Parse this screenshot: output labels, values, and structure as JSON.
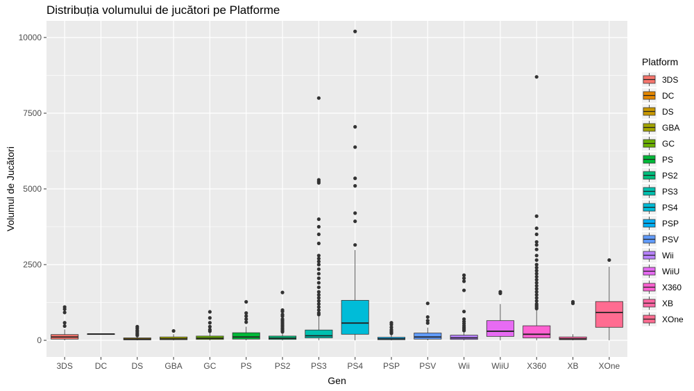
{
  "chart_data": {
    "type": "boxplot",
    "title": "Distribuția volumului de jucători pe Platforme",
    "xlabel": "Gen",
    "ylabel": "Volumul de Jucători",
    "ylim": [
      -550,
      10550
    ],
    "yticks": [
      0,
      2500,
      5000,
      7500,
      10000
    ],
    "grid": true,
    "legend": {
      "title": "Platform",
      "position": "right"
    },
    "categories": [
      "3DS",
      "DC",
      "DS",
      "GBA",
      "GC",
      "PS",
      "PS2",
      "PS3",
      "PS4",
      "PSP",
      "PSV",
      "Wii",
      "WiiU",
      "X360",
      "XB",
      "XOne"
    ],
    "colors": [
      "#F8766D",
      "#E58700",
      "#C99800",
      "#A3A500",
      "#6BB100",
      "#00BA38",
      "#00BF7D",
      "#00C0AF",
      "#00BCD8",
      "#00B0F6",
      "#619CFF",
      "#B983FF",
      "#E76BF3",
      "#FD61D1",
      "#FF67A4",
      "#FF6C91"
    ],
    "boxes": [
      {
        "name": "3DS",
        "min": 0,
        "q1": 40,
        "median": 110,
        "q3": 190,
        "max": 360,
        "outliers": [
          470,
          580,
          920,
          1030,
          1100
        ]
      },
      {
        "name": "DC",
        "min": 200,
        "q1": 205,
        "median": 210,
        "q3": 215,
        "max": 220,
        "outliers": []
      },
      {
        "name": "DS",
        "min": 0,
        "q1": 15,
        "median": 40,
        "q3": 80,
        "max": 140,
        "outliers": [
          160,
          200,
          240,
          290,
          330,
          400,
          450
        ]
      },
      {
        "name": "GBA",
        "min": 0,
        "q1": 20,
        "median": 50,
        "q3": 110,
        "max": 200,
        "outliers": [
          310
        ]
      },
      {
        "name": "GC",
        "min": 0,
        "q1": 30,
        "median": 70,
        "q3": 140,
        "max": 280,
        "outliers": [
          300,
          350,
          450,
          580,
          740,
          940
        ]
      },
      {
        "name": "PS",
        "min": 0,
        "q1": 40,
        "median": 110,
        "q3": 250,
        "max": 450,
        "outliers": [
          600,
          700,
          800,
          900,
          1270
        ]
      },
      {
        "name": "PS2",
        "min": 0,
        "q1": 30,
        "median": 70,
        "q3": 140,
        "max": 250,
        "outliers": [
          280,
          320,
          360,
          400,
          450,
          500,
          550,
          600,
          650,
          700,
          800,
          850,
          950,
          1000,
          1580
        ]
      },
      {
        "name": "PS3",
        "min": 0,
        "q1": 80,
        "median": 150,
        "q3": 340,
        "max": 800,
        "outliers": [
          850,
          900,
          1000,
          1100,
          1200,
          1300,
          1400,
          1500,
          1600,
          1750,
          1900,
          2050,
          2200,
          2350,
          2500,
          2600,
          2700,
          2800,
          3200,
          3500,
          3750,
          4000,
          5200,
          5250,
          5300,
          8000
        ]
      },
      {
        "name": "PS4",
        "min": 0,
        "q1": 200,
        "median": 570,
        "q3": 1320,
        "max": 2980,
        "outliers": [
          3150,
          3930,
          4200,
          5100,
          5350,
          6380,
          7050,
          10200
        ]
      },
      {
        "name": "PSP",
        "min": 0,
        "q1": 20,
        "median": 50,
        "q3": 100,
        "max": 200,
        "outliers": [
          230,
          260,
          300,
          350,
          430,
          520,
          580
        ]
      },
      {
        "name": "PSV",
        "min": 0,
        "q1": 40,
        "median": 110,
        "q3": 240,
        "max": 420,
        "outliers": [
          570,
          650,
          770,
          1220
        ]
      },
      {
        "name": "Wii",
        "min": 0,
        "q1": 30,
        "median": 80,
        "q3": 170,
        "max": 300,
        "outliers": [
          320,
          370,
          420,
          480,
          550,
          620,
          700,
          950,
          1650,
          1950,
          2050,
          2150
        ]
      },
      {
        "name": "WiiU",
        "min": 0,
        "q1": 130,
        "median": 300,
        "q3": 650,
        "max": 1200,
        "outliers": [
          1550,
          1600
        ]
      },
      {
        "name": "X360",
        "min": 0,
        "q1": 80,
        "median": 200,
        "q3": 480,
        "max": 1000,
        "outliers": [
          1050,
          1100,
          1150,
          1200,
          1300,
          1400,
          1500,
          1600,
          1700,
          1800,
          1900,
          2000,
          2100,
          2200,
          2300,
          2400,
          2500,
          2650,
          2800,
          3000,
          3150,
          3250,
          3500,
          3700,
          4100,
          8700
        ]
      },
      {
        "name": "XB",
        "min": 0,
        "q1": 20,
        "median": 50,
        "q3": 110,
        "max": 200,
        "outliers": [
          1220,
          1270
        ]
      },
      {
        "name": "XOne",
        "min": 0,
        "q1": 430,
        "median": 920,
        "q3": 1280,
        "max": 2430,
        "outliers": [
          2650
        ]
      }
    ]
  }
}
